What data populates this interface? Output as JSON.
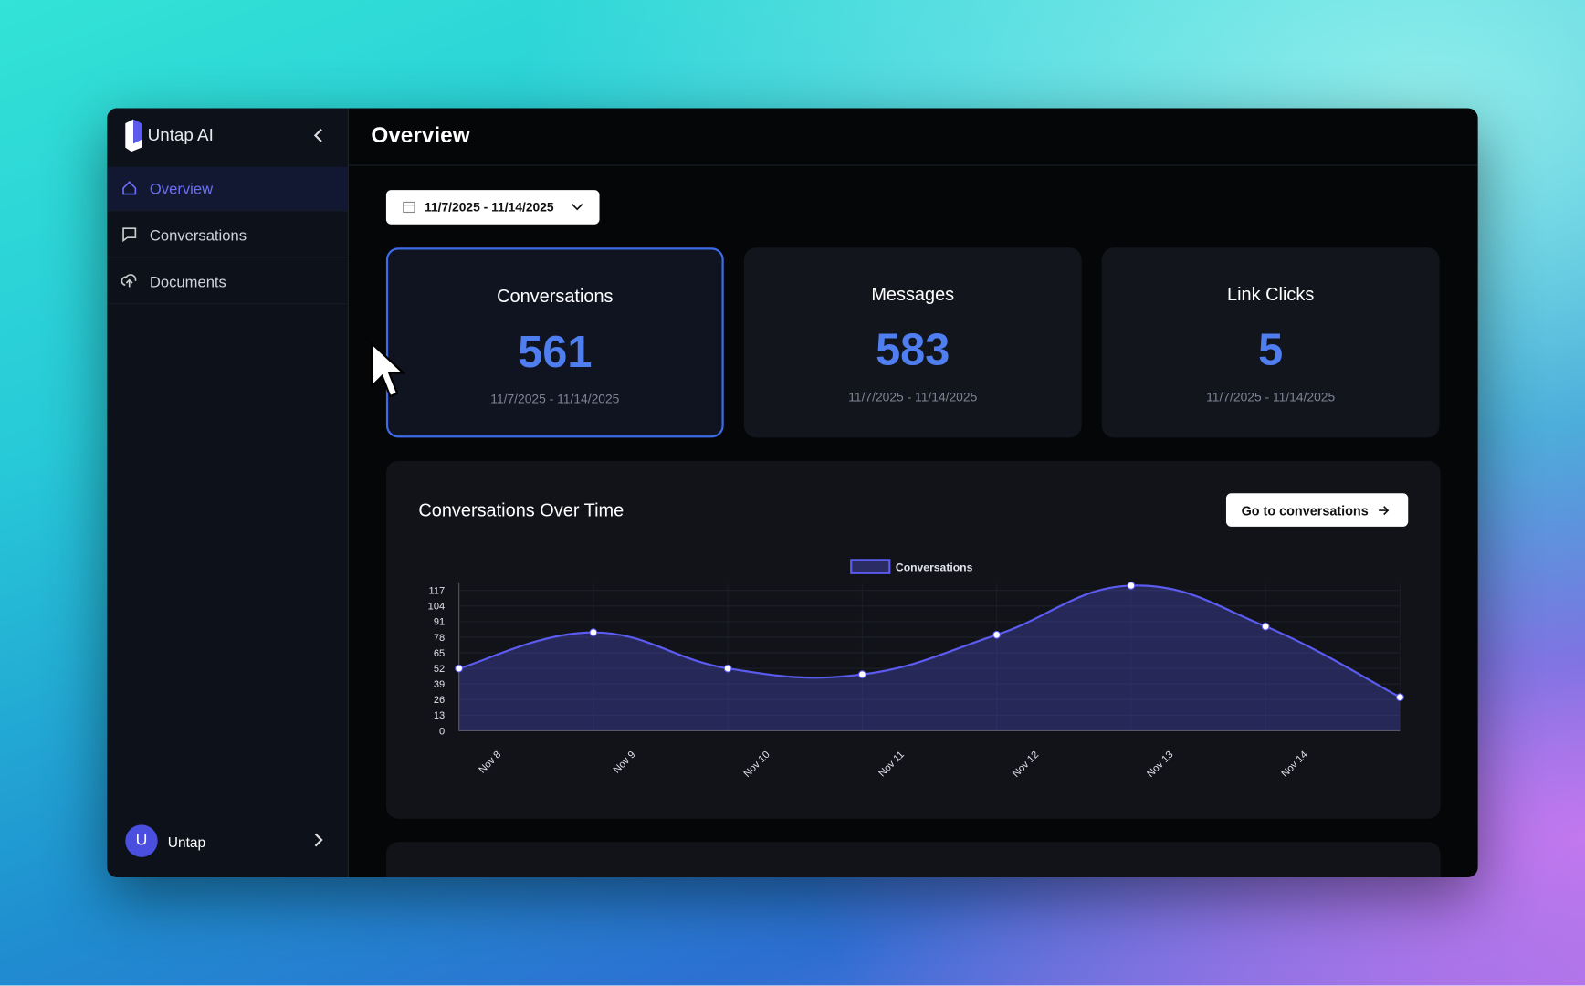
{
  "sidebar": {
    "brand": "Untap AI",
    "nav": [
      "Overview",
      "Conversations",
      "Documents"
    ],
    "user_initial": "U",
    "user_name": "Untap"
  },
  "header": {
    "title": "Overview"
  },
  "date_range": "11/7/2025 - 11/14/2025",
  "cards": [
    {
      "label": "Conversations",
      "value": "561",
      "range": "11/7/2025 - 11/14/2025"
    },
    {
      "label": "Messages",
      "value": "583",
      "range": "11/7/2025 - 11/14/2025"
    },
    {
      "label": "Link Clicks",
      "value": "5",
      "range": "11/7/2025 - 11/14/2025"
    }
  ],
  "button": "Go to conversations",
  "chart_data": {
    "type": "line",
    "title": "Conversations Over Time",
    "categories": [
      "Nov 8",
      "Nov 9",
      "Nov 10",
      "Nov 11",
      "Nov 12",
      "Nov 13",
      "Nov 14",
      null
    ],
    "series": [
      {
        "name": "Conversations",
        "color": "#5b5bf0",
        "values": [
          52,
          82,
          52,
          47,
          80,
          121,
          87,
          28
        ]
      }
    ],
    "ylim": [
      0,
      123
    ],
    "yticks": [
      0,
      13,
      26,
      39,
      52,
      65,
      78,
      91,
      104,
      117
    ],
    "grid": true,
    "legend": "top"
  }
}
